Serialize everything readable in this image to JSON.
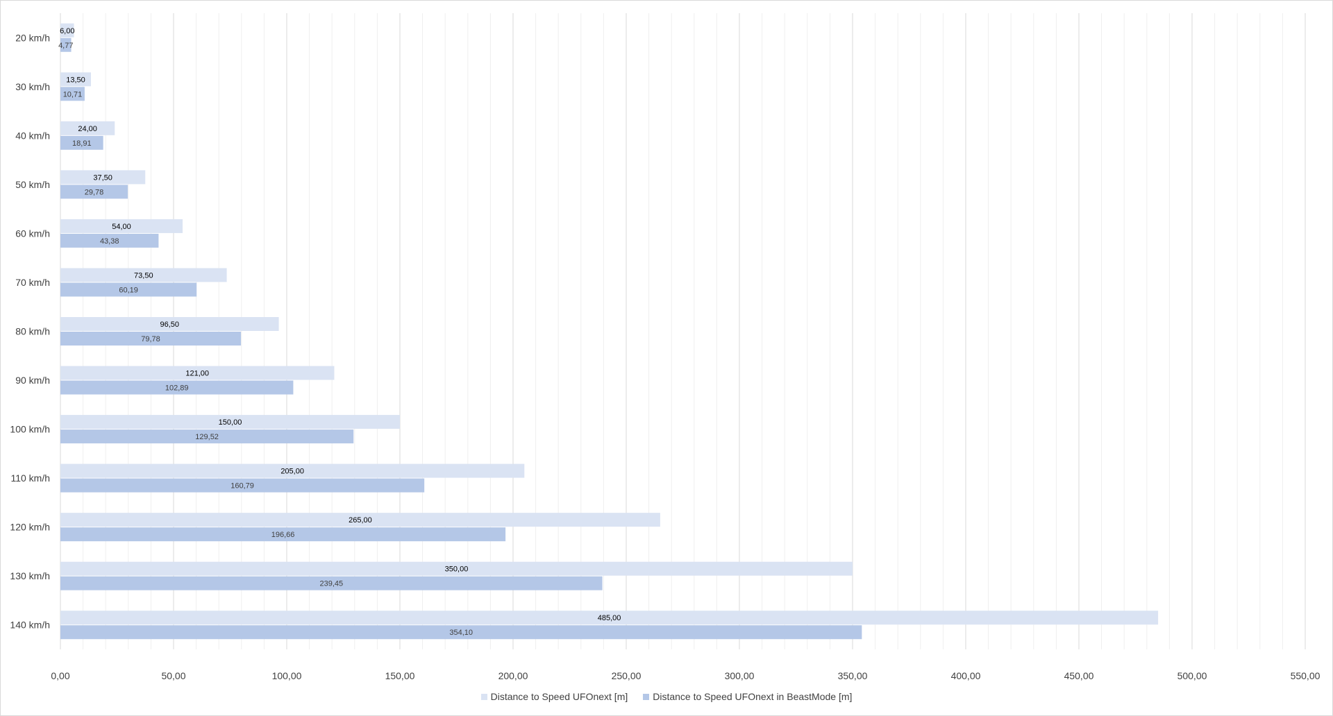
{
  "chart_data": {
    "type": "bar",
    "orientation": "horizontal",
    "categories": [
      "20 km/h",
      "30 km/h",
      "40 km/h",
      "50 km/h",
      "60 km/h",
      "70 km/h",
      "80 km/h",
      "90 km/h",
      "100 km/h",
      "110 km/h",
      "120 km/h",
      "130 km/h",
      "140 km/h"
    ],
    "series": [
      {
        "name": "Distance to Speed UFOnext [m]",
        "values": [
          6.0,
          13.5,
          24.0,
          37.5,
          54.0,
          73.5,
          96.5,
          121.0,
          150.0,
          205.0,
          265.0,
          350.0,
          485.0
        ],
        "labels": [
          "6,00",
          "13,50",
          "24,00",
          "37,50",
          "54,00",
          "73,50",
          "96,50",
          "121,00",
          "150,00",
          "205,00",
          "265,00",
          "350,00",
          "485,00"
        ],
        "color": "#dae3f3"
      },
      {
        "name": "Distance to Speed UFOnext in BeastMode [m]",
        "values": [
          4.77,
          10.71,
          18.91,
          29.78,
          43.38,
          60.19,
          79.78,
          102.89,
          129.52,
          160.79,
          196.66,
          239.45,
          354.1
        ],
        "labels": [
          "4,77",
          "10,71",
          "18,91",
          "29,78",
          "43,38",
          "60,19",
          "79,78",
          "102,89",
          "129,52",
          "160,79",
          "196,66",
          "239,45",
          "354,10"
        ],
        "color": "#b4c7e7"
      }
    ],
    "xticks": [
      "0,00",
      "50,00",
      "100,00",
      "150,00",
      "200,00",
      "250,00",
      "300,00",
      "350,00",
      "400,00",
      "450,00",
      "500,00",
      "550,00"
    ],
    "xlim": [
      0,
      550
    ],
    "major_step": 50,
    "minor_step": 10,
    "grid": true,
    "legend_position": "bottom",
    "title": "",
    "xlabel": "",
    "ylabel": ""
  }
}
